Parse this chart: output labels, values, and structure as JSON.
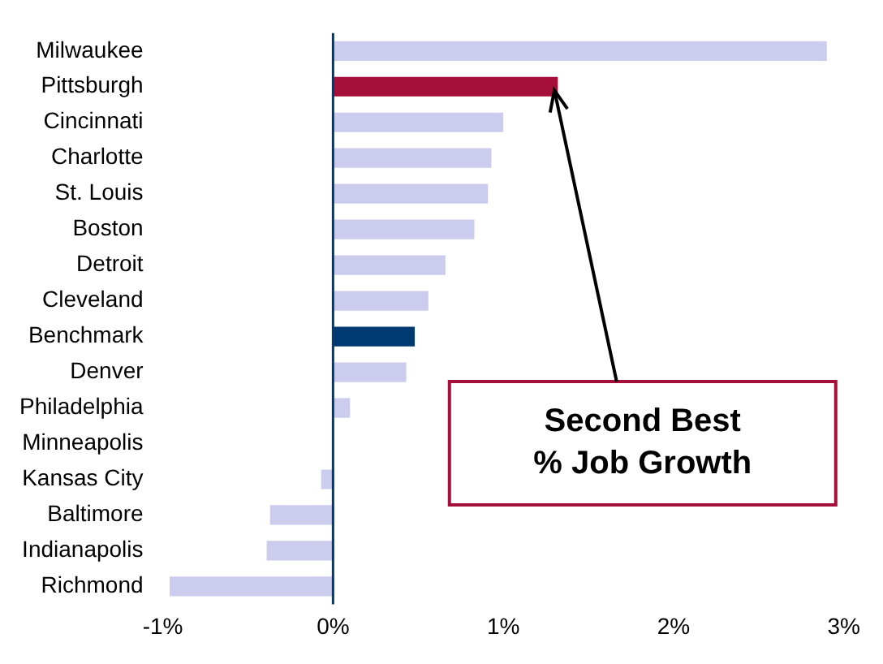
{
  "chart_data": {
    "type": "bar",
    "orientation": "horizontal",
    "categories": [
      "Milwaukee",
      "Pittsburgh",
      "Cincinnati",
      "Charlotte",
      "St. Louis",
      "Boston",
      "Detroit",
      "Cleveland",
      "Benchmark",
      "Denver",
      "Philadelphia",
      "Minneapolis",
      "Kansas City",
      "Baltimore",
      "Indianapolis",
      "Richmond"
    ],
    "values": [
      2.9,
      1.32,
      1.0,
      0.93,
      0.91,
      0.83,
      0.66,
      0.56,
      0.48,
      0.43,
      0.1,
      0,
      -0.07,
      -0.37,
      -0.39,
      -0.96
    ],
    "colors": [
      "#ccccee",
      "#a50f3a",
      "#ccccee",
      "#ccccee",
      "#ccccee",
      "#ccccee",
      "#ccccee",
      "#ccccee",
      "#003a70",
      "#ccccee",
      "#ccccee",
      "#ccccee",
      "#ccccee",
      "#ccccee",
      "#ccccee",
      "#ccccee"
    ],
    "xlim": [
      -1,
      3
    ],
    "xticks": [
      {
        "value": -1,
        "label": "-1%"
      },
      {
        "value": 0,
        "label": "0%"
      },
      {
        "value": 1,
        "label": "1%"
      },
      {
        "value": 2,
        "label": "2%"
      },
      {
        "value": 3,
        "label": "3%"
      }
    ],
    "grid": false,
    "legend": false,
    "ref_lines": [
      {
        "axis": "x",
        "value": 0,
        "color": "#003a70"
      }
    ],
    "annotations": [
      "Second Best\n% Job Growth"
    ]
  }
}
